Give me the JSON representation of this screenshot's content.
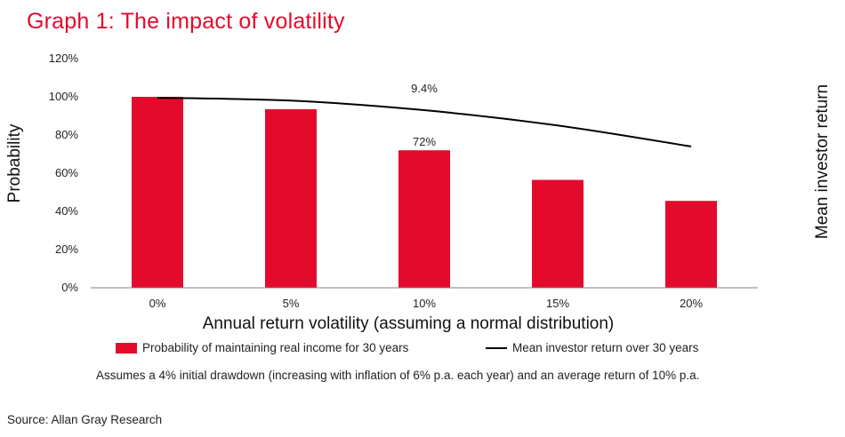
{
  "title": "Graph 1: The impact of volatility",
  "chart_data": {
    "type": "bar",
    "categories": [
      "0%",
      "5%",
      "10%",
      "15%",
      "20%"
    ],
    "xlabel": "Annual return volatility (assuming a normal distribution)",
    "ylabel": "Probability",
    "y2label": "Mean investor return",
    "ylim": [
      0,
      120
    ],
    "yticks": [
      0,
      20,
      40,
      60,
      80,
      100,
      120
    ],
    "ytick_labels": [
      "0%",
      "20%",
      "40%",
      "60%",
      "80%",
      "100%",
      "120%"
    ],
    "series": [
      {
        "name": "Probability of maintaining real income for 30 years",
        "type": "bar",
        "color": "#e30a2c",
        "values": [
          100,
          93.5,
          72,
          56.5,
          45.5
        ]
      },
      {
        "name": "Mean investor return over 30 years",
        "type": "line",
        "color": "#000000",
        "values": [
          99.5,
          98,
          93,
          85,
          74
        ]
      }
    ],
    "annotations": [
      {
        "text": "72%",
        "category": "10%",
        "series": "bar"
      },
      {
        "text": "9.4%",
        "category": "10%",
        "series": "line"
      }
    ],
    "grid": false,
    "legend_position": "bottom"
  },
  "note": "Assumes a 4% initial drawdown (increasing with inflation of 6% p.a. each year) and an average return of 10% p.a.",
  "source": "Source: Allan Gray Research"
}
